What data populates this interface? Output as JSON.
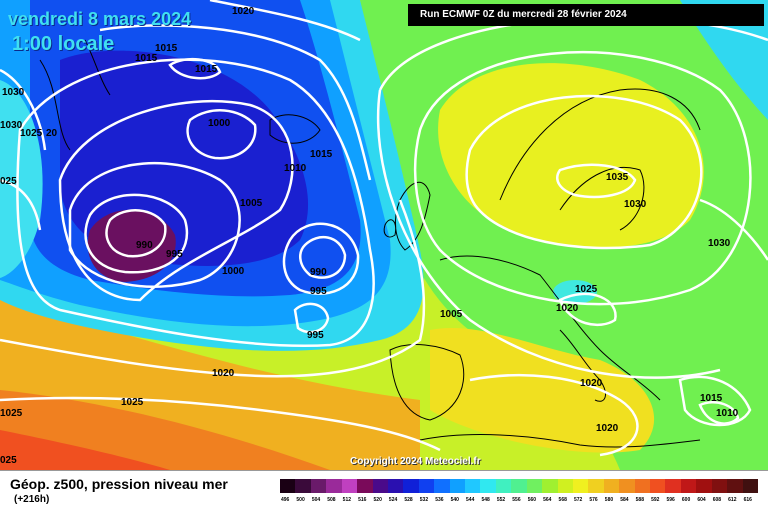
{
  "header": {
    "date": "vendredi 8 mars 2024",
    "time": "1:00 locale",
    "run_info": "Run ECMWF 0Z du mercredi 28 février 2024"
  },
  "copyright": "Copyright 2024 Meteociel.fr",
  "legend": {
    "title": "Géop. z500, pression niveau mer",
    "subtitle": "(+216h)",
    "scale": [
      {
        "label": "496",
        "color": "#1a0014"
      },
      {
        "label": "500",
        "color": "#3a0a3a"
      },
      {
        "label": "504",
        "color": "#6a1a6a"
      },
      {
        "label": "508",
        "color": "#9a2a9a"
      },
      {
        "label": "512",
        "color": "#c040c0"
      },
      {
        "label": "516",
        "color": "#7a0a5a"
      },
      {
        "label": "520",
        "color": "#4a0a8a"
      },
      {
        "label": "524",
        "color": "#2a10b0"
      },
      {
        "label": "528",
        "color": "#1020d8"
      },
      {
        "label": "532",
        "color": "#1040f0"
      },
      {
        "label": "536",
        "color": "#1070ff"
      },
      {
        "label": "540",
        "color": "#10a0ff"
      },
      {
        "label": "544",
        "color": "#20c8ff"
      },
      {
        "label": "548",
        "color": "#30e8f0"
      },
      {
        "label": "552",
        "color": "#40f0c0"
      },
      {
        "label": "556",
        "color": "#50f090"
      },
      {
        "label": "560",
        "color": "#70f060"
      },
      {
        "label": "564",
        "color": "#a0f030"
      },
      {
        "label": "568",
        "color": "#d0f020"
      },
      {
        "label": "572",
        "color": "#f0f020"
      },
      {
        "label": "576",
        "color": "#f0d020"
      },
      {
        "label": "580",
        "color": "#f0b020"
      },
      {
        "label": "584",
        "color": "#f09020"
      },
      {
        "label": "588",
        "color": "#f07020"
      },
      {
        "label": "592",
        "color": "#f05020"
      },
      {
        "label": "596",
        "color": "#e03020"
      },
      {
        "label": "600",
        "color": "#c01818"
      },
      {
        "label": "604",
        "color": "#a01010"
      },
      {
        "label": "608",
        "color": "#801010"
      },
      {
        "label": "612",
        "color": "#601010"
      },
      {
        "label": "616",
        "color": "#401010"
      }
    ]
  },
  "pressure_labels": [
    {
      "text": "1020"
    },
    {
      "text": "1015"
    },
    {
      "text": "1015"
    },
    {
      "text": "1015"
    },
    {
      "text": "1030"
    },
    {
      "text": "1030"
    },
    {
      "text": "1025"
    },
    {
      "text": "20"
    },
    {
      "text": "025"
    },
    {
      "text": "1000"
    },
    {
      "text": "1010"
    },
    {
      "text": "1015"
    },
    {
      "text": "1005"
    },
    {
      "text": "990"
    },
    {
      "text": "995"
    },
    {
      "text": "990"
    },
    {
      "text": "995"
    },
    {
      "text": "1000"
    },
    {
      "text": "995"
    },
    {
      "text": "1005"
    },
    {
      "text": "1035"
    },
    {
      "text": "1030"
    },
    {
      "text": "1030"
    },
    {
      "text": "1025"
    },
    {
      "text": "1020"
    },
    {
      "text": "1020"
    },
    {
      "text": "1020"
    },
    {
      "text": "1025"
    },
    {
      "text": "1025"
    },
    {
      "text": "1020"
    },
    {
      "text": "1015"
    },
    {
      "text": "1010"
    },
    {
      "text": "025"
    }
  ]
}
